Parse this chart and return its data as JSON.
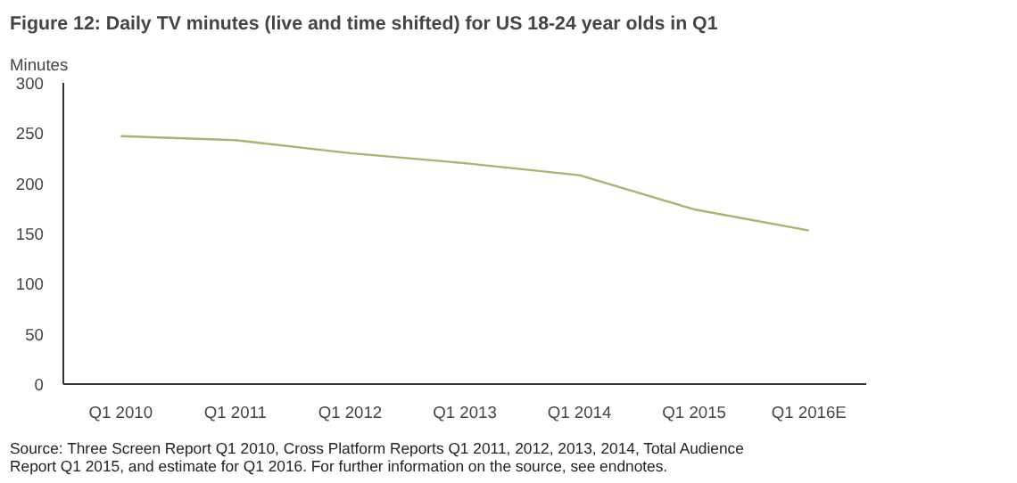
{
  "chart_data": {
    "type": "line",
    "title": "Figure 12: Daily TV minutes (live and time shifted) for US 18-24 year olds in Q1",
    "ylabel": "Minutes",
    "categories": [
      "Q1 2010",
      "Q1 2011",
      "Q1 2012",
      "Q1 2013",
      "Q1 2014",
      "Q1 2015",
      "Q1 2016E"
    ],
    "series": [
      {
        "color": "#a3b86c",
        "values": [
          247,
          243,
          230,
          220,
          208,
          174,
          153
        ]
      }
    ],
    "ylim": [
      0,
      300
    ],
    "yticks": [
      0,
      50,
      100,
      150,
      200,
      250,
      300
    ],
    "grid": false,
    "marker": "none",
    "line_style": "solid",
    "annotations": [
      "Source: Three Screen Report Q1 2010, Cross Platform Reports Q1 2011, 2012, 2013, 2014, Total Audience\nReport Q1 2015, and estimate for Q1 2016. For further information on the source, see endnotes."
    ]
  }
}
